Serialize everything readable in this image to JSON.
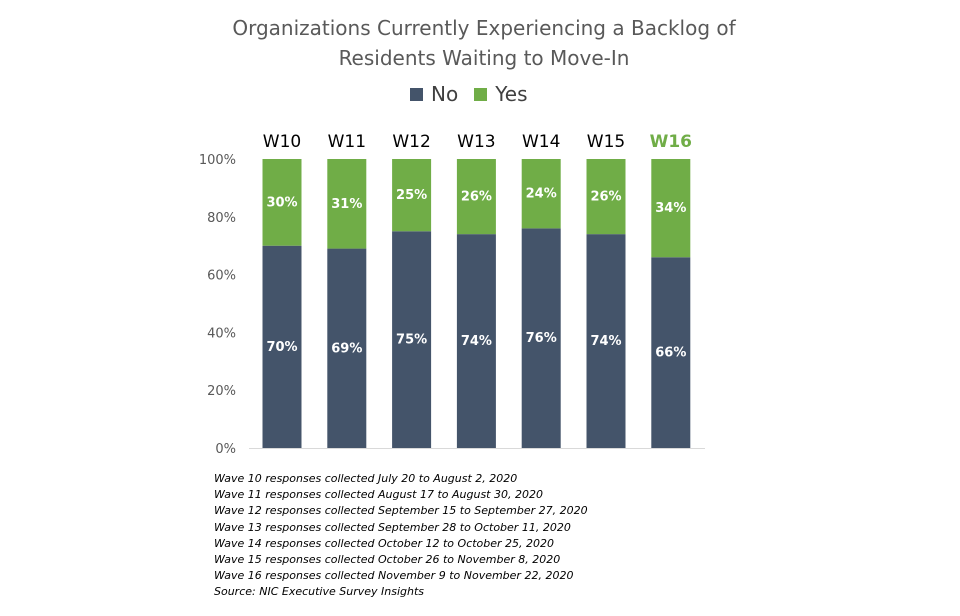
{
  "chart_data": {
    "type": "bar",
    "stacked": true,
    "title_lines": [
      "Organizations Currently Experiencing a Backlog of",
      "Residents Waiting to Move-In"
    ],
    "categories": [
      "W10",
      "W11",
      "W12",
      "W13",
      "W14",
      "W15",
      "W16"
    ],
    "highlight_category": "W16",
    "series": [
      {
        "name": "No",
        "values": [
          70,
          69,
          75,
          74,
          76,
          74,
          66
        ],
        "color": "#44546a"
      },
      {
        "name": "Yes",
        "values": [
          30,
          31,
          25,
          26,
          24,
          26,
          34
        ],
        "color": "#70ad47"
      }
    ],
    "ylim": [
      0,
      100
    ],
    "yticks": [
      "0%",
      "20%",
      "40%",
      "60%",
      "80%",
      "100%"
    ],
    "value_suffix": "%",
    "legend_position": "top",
    "category_labels_position": "top",
    "highlight_color": "#70ad47"
  },
  "notes": [
    "Wave 10 responses collected  July 20 to August 2, 2020",
    "Wave 11 responses collected  August 17 to August 30, 2020",
    "Wave 12 responses collected  September 15 to September 27, 2020",
    "Wave 13 responses collected  September 28 to October 11, 2020",
    "Wave 14 responses collected  October 12 to October 25, 2020",
    "Wave 15 responses collected  October 26 to November 8, 2020",
    "Wave 16 responses collected  November 9 to November 22, 2020",
    "Source: NIC Executive Survey Insights"
  ]
}
